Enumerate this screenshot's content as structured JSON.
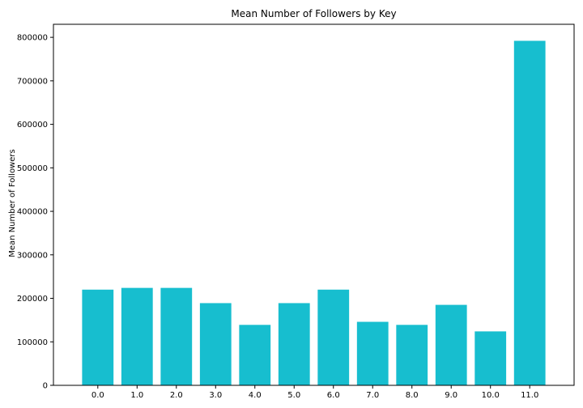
{
  "chart_data": {
    "type": "bar",
    "title": "Mean Number of Followers by Key",
    "xlabel": "",
    "ylabel": "Mean Number of Followers",
    "categories": [
      "0.0",
      "1.0",
      "2.0",
      "3.0",
      "4.0",
      "5.0",
      "6.0",
      "7.0",
      "8.0",
      "9.0",
      "10.0",
      "11.0"
    ],
    "values": [
      220000,
      224000,
      224000,
      189000,
      139000,
      189000,
      220000,
      146000,
      139000,
      185000,
      124000,
      792000
    ],
    "ylim": [
      0,
      830000
    ],
    "yticks": [
      0,
      100000,
      200000,
      300000,
      400000,
      500000,
      600000,
      700000,
      800000
    ],
    "ytick_labels": [
      "0",
      "100000",
      "200000",
      "300000",
      "400000",
      "500000",
      "600000",
      "700000",
      "800000"
    ],
    "bar_color": "#17becf",
    "grid": false,
    "legend": "none"
  }
}
